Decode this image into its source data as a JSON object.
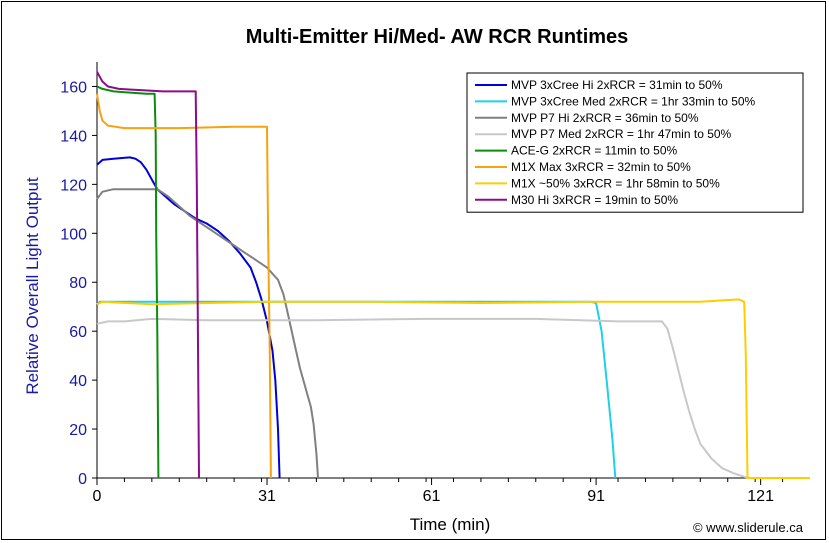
{
  "chart_data": {
    "type": "line",
    "title": "Multi-Emitter Hi/Med- AW RCR Runtimes",
    "xlabel": "Time (min)",
    "ylabel": "Relative Overall Light Output",
    "credit": "© www.sliderule.ca",
    "xlim": [
      0,
      130
    ],
    "ylim": [
      0,
      170
    ],
    "xticks": [
      0,
      31,
      61,
      91,
      121
    ],
    "yticks": [
      0,
      20,
      40,
      60,
      80,
      100,
      120,
      140,
      160
    ],
    "grid": false,
    "legend_position": "top-right",
    "series": [
      {
        "name": "MVP 3xCree Hi 2xRCR = 31min to 50%",
        "color": "#0000d8",
        "points": [
          [
            0,
            128
          ],
          [
            1,
            130
          ],
          [
            3,
            130.5
          ],
          [
            6,
            131
          ],
          [
            7,
            130.5
          ],
          [
            8,
            129
          ],
          [
            9,
            126
          ],
          [
            10,
            122
          ],
          [
            11,
            118
          ],
          [
            12,
            116
          ],
          [
            14,
            112
          ],
          [
            16,
            109
          ],
          [
            18,
            106
          ],
          [
            20,
            104
          ],
          [
            22,
            101
          ],
          [
            24,
            97
          ],
          [
            26,
            92
          ],
          [
            28,
            86
          ],
          [
            29,
            80
          ],
          [
            30,
            73
          ],
          [
            31,
            64
          ],
          [
            32,
            52
          ],
          [
            32.5,
            40
          ],
          [
            33,
            20
          ],
          [
            33.3,
            0
          ]
        ]
      },
      {
        "name": "MVP 3xCree Med 2xRCR = 1hr 33min to 50%",
        "color": "#1fd0e8",
        "points": [
          [
            0,
            71
          ],
          [
            0.5,
            72
          ],
          [
            10,
            72
          ],
          [
            30,
            72
          ],
          [
            50,
            72
          ],
          [
            70,
            72
          ],
          [
            90,
            72
          ],
          [
            91,
            71.5
          ],
          [
            92,
            60
          ],
          [
            93,
            38
          ],
          [
            94,
            15
          ],
          [
            94.5,
            0
          ]
        ]
      },
      {
        "name": "MVP P7 Hi 2xRCR = 36min to 50%",
        "color": "#808080",
        "points": [
          [
            0,
            114
          ],
          [
            1,
            117
          ],
          [
            3,
            118
          ],
          [
            7,
            118
          ],
          [
            11,
            118
          ],
          [
            13,
            115
          ],
          [
            15,
            111
          ],
          [
            17,
            107
          ],
          [
            19,
            104
          ],
          [
            21,
            101
          ],
          [
            23,
            98
          ],
          [
            25,
            95
          ],
          [
            27,
            92
          ],
          [
            29,
            89
          ],
          [
            31,
            86
          ],
          [
            33,
            81
          ],
          [
            34,
            75
          ],
          [
            35,
            65
          ],
          [
            36,
            55
          ],
          [
            37,
            45
          ],
          [
            38,
            37
          ],
          [
            39,
            29
          ],
          [
            39.5,
            22
          ],
          [
            40,
            10
          ],
          [
            40.3,
            0
          ]
        ]
      },
      {
        "name": "MVP P7 Med 2xRCR = 1hr 47min to 50%",
        "color": "#c8c8c8",
        "points": [
          [
            0,
            63
          ],
          [
            2,
            64
          ],
          [
            5,
            64
          ],
          [
            10,
            65
          ],
          [
            20,
            64.5
          ],
          [
            40,
            64.5
          ],
          [
            60,
            65
          ],
          [
            80,
            65
          ],
          [
            95,
            64
          ],
          [
            103,
            64
          ],
          [
            104,
            61
          ],
          [
            105,
            53
          ],
          [
            106,
            44
          ],
          [
            107,
            35
          ],
          [
            108,
            27
          ],
          [
            109,
            20
          ],
          [
            110,
            14
          ],
          [
            112,
            8
          ],
          [
            114,
            4
          ],
          [
            116,
            2
          ],
          [
            118,
            0.5
          ],
          [
            119,
            0
          ]
        ]
      },
      {
        "name": "ACE-G 2xRCR = 11min to 50%",
        "color": "#0c8c0c",
        "points": [
          [
            0,
            160
          ],
          [
            1,
            159
          ],
          [
            3,
            158
          ],
          [
            6,
            157.5
          ],
          [
            9,
            157
          ],
          [
            10.5,
            157
          ],
          [
            10.7,
            140
          ],
          [
            10.8,
            100
          ],
          [
            11,
            60
          ],
          [
            11.2,
            0
          ]
        ]
      },
      {
        "name": "M1X Max 3xRCR = 32min to 50%",
        "color": "#f7a20f",
        "points": [
          [
            0,
            157
          ],
          [
            0.5,
            150
          ],
          [
            1,
            146
          ],
          [
            2,
            144
          ],
          [
            5,
            143
          ],
          [
            15,
            143
          ],
          [
            25,
            143.5
          ],
          [
            31,
            143.5
          ],
          [
            31.2,
            100
          ],
          [
            31.5,
            50
          ],
          [
            31.7,
            0
          ]
        ]
      },
      {
        "name": "M1X ~50% 3xRCR = 1hr 58min to 50%",
        "color": "#ffcc00",
        "points": [
          [
            0,
            71
          ],
          [
            1,
            72
          ],
          [
            10,
            71
          ],
          [
            30,
            72
          ],
          [
            50,
            72
          ],
          [
            70,
            71.5
          ],
          [
            90,
            72
          ],
          [
            100,
            72
          ],
          [
            110,
            72
          ],
          [
            117,
            73
          ],
          [
            118,
            72
          ],
          [
            118.3,
            50
          ],
          [
            118.6,
            0
          ],
          [
            130,
            0
          ]
        ]
      },
      {
        "name": "M30 Hi 3xRCR = 19min to 50%",
        "color": "#8c0c8c",
        "points": [
          [
            0,
            166
          ],
          [
            0.5,
            164
          ],
          [
            1,
            162
          ],
          [
            2,
            160
          ],
          [
            4,
            159
          ],
          [
            8,
            158.5
          ],
          [
            12,
            158
          ],
          [
            18,
            158
          ],
          [
            18.2,
            120
          ],
          [
            18.4,
            60
          ],
          [
            18.6,
            0
          ]
        ]
      }
    ]
  }
}
